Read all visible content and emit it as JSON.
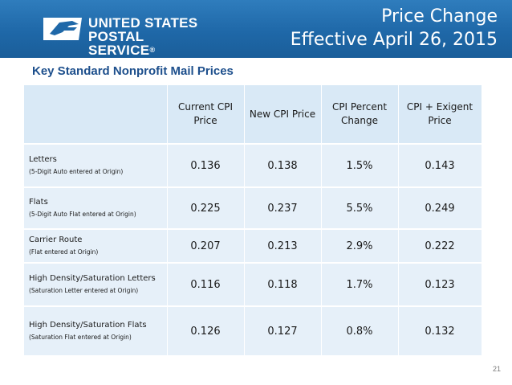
{
  "header": {
    "logo_line1": "UNITED STATES",
    "logo_line2": "POSTAL SERVICE",
    "logo_mark": "®",
    "title_line1": "Price Change",
    "title_line2": "Effective April 26, 2015",
    "brand_color": "#2f7dbd"
  },
  "subtitle": "Key Standard Nonprofit Mail Prices",
  "table": {
    "columns": [
      "",
      "Current CPI Price",
      "New CPI Price",
      "CPI Percent Change",
      "CPI + Exigent Price"
    ],
    "rows": [
      {
        "label": "Letters",
        "sub": "(5-Digit Auto entered at Origin)",
        "values": [
          "0.136",
          "0.138",
          "1.5%",
          "0.143"
        ]
      },
      {
        "label": "Flats",
        "sub": "(5-Digit Auto Flat entered at Origin)",
        "values": [
          "0.225",
          "0.237",
          "5.5%",
          "0.249"
        ]
      },
      {
        "label": "Carrier Route",
        "sub": "(Flat entered at Origin)",
        "values": [
          "0.207",
          "0.213",
          "2.9%",
          "0.222"
        ]
      },
      {
        "label": "High Density/Saturation Letters",
        "sub": "(Saturation Letter entered at Origin)",
        "values": [
          "0.116",
          "0.118",
          "1.7%",
          "0.123"
        ]
      },
      {
        "label": "High Density/Saturation Flats",
        "sub": "(Saturation Flat entered at Origin)",
        "values": [
          "0.126",
          "0.127",
          "0.8%",
          "0.132"
        ]
      }
    ]
  },
  "page_number": "21"
}
